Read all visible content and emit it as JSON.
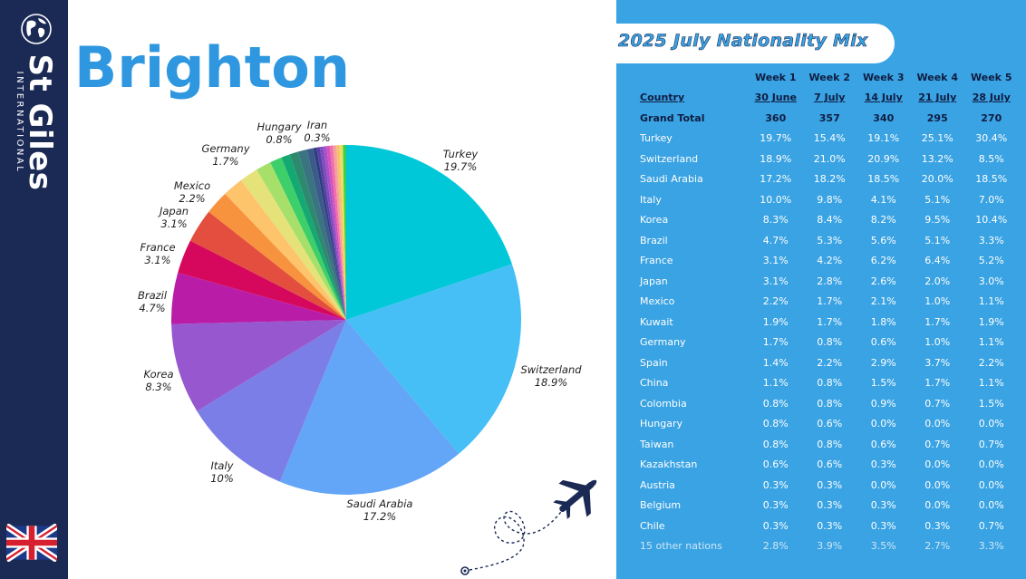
{
  "brand": {
    "name": "St Giles",
    "sub": "INTERNATIONAL"
  },
  "city": "Brighton",
  "table_title": "2025 July Nationality Mix",
  "icons": {
    "logo": "globe-icon",
    "flag": "uk-flag-icon",
    "decor": "airplane-icon"
  },
  "colors": {
    "panel": "#3aa3e3",
    "sidebar": "#1b2a55",
    "city": "#2e97e0"
  },
  "table": {
    "weeks": [
      "Week 1",
      "Week 2",
      "Week 3",
      "Week 4",
      "Week 5"
    ],
    "country_header": "Country",
    "dates": [
      "30 June",
      "7 July",
      "14 July",
      "21 July",
      "28 July"
    ],
    "total_label": "Grand Total",
    "totals": [
      "360",
      "357",
      "340",
      "295",
      "270"
    ],
    "rows": [
      {
        "country": "Turkey",
        "values": [
          "19.7%",
          "15.4%",
          "19.1%",
          "25.1%",
          "30.4%"
        ]
      },
      {
        "country": "Switzerland",
        "values": [
          "18.9%",
          "21.0%",
          "20.9%",
          "13.2%",
          "8.5%"
        ]
      },
      {
        "country": "Saudi Arabia",
        "values": [
          "17.2%",
          "18.2%",
          "18.5%",
          "20.0%",
          "18.5%"
        ]
      },
      {
        "country": "Italy",
        "values": [
          "10.0%",
          "9.8%",
          "4.1%",
          "5.1%",
          "7.0%"
        ]
      },
      {
        "country": "Korea",
        "values": [
          "8.3%",
          "8.4%",
          "8.2%",
          "9.5%",
          "10.4%"
        ]
      },
      {
        "country": "Brazil",
        "values": [
          "4.7%",
          "5.3%",
          "5.6%",
          "5.1%",
          "3.3%"
        ]
      },
      {
        "country": "France",
        "values": [
          "3.1%",
          "4.2%",
          "6.2%",
          "6.4%",
          "5.2%"
        ]
      },
      {
        "country": "Japan",
        "values": [
          "3.1%",
          "2.8%",
          "2.6%",
          "2.0%",
          "3.0%"
        ]
      },
      {
        "country": "Mexico",
        "values": [
          "2.2%",
          "1.7%",
          "2.1%",
          "1.0%",
          "1.1%"
        ]
      },
      {
        "country": "Kuwait",
        "values": [
          "1.9%",
          "1.7%",
          "1.8%",
          "1.7%",
          "1.9%"
        ]
      },
      {
        "country": "Germany",
        "values": [
          "1.7%",
          "0.8%",
          "0.6%",
          "1.0%",
          "1.1%"
        ]
      },
      {
        "country": "Spain",
        "values": [
          "1.4%",
          "2.2%",
          "2.9%",
          "3.7%",
          "2.2%"
        ]
      },
      {
        "country": "China",
        "values": [
          "1.1%",
          "0.8%",
          "1.5%",
          "1.7%",
          "1.1%"
        ]
      },
      {
        "country": "Colombia",
        "values": [
          "0.8%",
          "0.8%",
          "0.9%",
          "0.7%",
          "1.5%"
        ]
      },
      {
        "country": "Hungary",
        "values": [
          "0.8%",
          "0.6%",
          "0.0%",
          "0.0%",
          "0.0%"
        ]
      },
      {
        "country": "Taiwan",
        "values": [
          "0.8%",
          "0.8%",
          "0.6%",
          "0.7%",
          "0.7%"
        ]
      },
      {
        "country": "Kazakhstan",
        "values": [
          "0.6%",
          "0.6%",
          "0.3%",
          "0.0%",
          "0.0%"
        ]
      },
      {
        "country": "Austria",
        "values": [
          "0.3%",
          "0.3%",
          "0.0%",
          "0.0%",
          "0.0%"
        ]
      },
      {
        "country": "Belgium",
        "values": [
          "0.3%",
          "0.3%",
          "0.3%",
          "0.0%",
          "0.0%"
        ]
      },
      {
        "country": "Chile",
        "values": [
          "0.3%",
          "0.3%",
          "0.3%",
          "0.3%",
          "0.7%"
        ]
      }
    ],
    "other": {
      "country": "15 other nations",
      "values": [
        "2.8%",
        "3.9%",
        "3.5%",
        "2.7%",
        "3.3%"
      ]
    }
  },
  "chart_data": {
    "type": "pie",
    "slices": [
      {
        "name": "Turkey",
        "value": 19.7,
        "label": "Turkey",
        "pct": "19.7%",
        "color": "#00c8d8"
      },
      {
        "name": "Switzerland",
        "value": 18.9,
        "label": "Switzerland",
        "pct": "18.9%",
        "color": "#45bff5"
      },
      {
        "name": "Saudi Arabia",
        "value": 17.2,
        "label": "Saudi Arabia",
        "pct": "17.2%",
        "color": "#63a5f6"
      },
      {
        "name": "Italy",
        "value": 10.0,
        "label": "Italy",
        "pct": "10%",
        "color": "#7a7ee6"
      },
      {
        "name": "Korea",
        "value": 8.3,
        "label": "Korea",
        "pct": "8.3%",
        "color": "#9657cf"
      },
      {
        "name": "Brazil",
        "value": 4.7,
        "label": "Brazil",
        "pct": "4.7%",
        "color": "#b91da8"
      },
      {
        "name": "France",
        "value": 3.1,
        "label": "France",
        "pct": "3.1%",
        "color": "#d6085e"
      },
      {
        "name": "Japan",
        "value": 3.1,
        "label": "Japan",
        "pct": "3.1%",
        "color": "#e44e3e"
      },
      {
        "name": "Mexico",
        "value": 2.2,
        "label": "Mexico",
        "pct": "2.2%",
        "color": "#f7923e"
      },
      {
        "name": "Kuwait",
        "value": 1.9,
        "label": "",
        "pct": "",
        "color": "#fdc46c"
      },
      {
        "name": "Germany",
        "value": 1.7,
        "label": "Germany",
        "pct": "1.7%",
        "color": "#e6e27a"
      },
      {
        "name": "Spain",
        "value": 1.4,
        "label": "",
        "pct": "",
        "color": "#a6e06a"
      },
      {
        "name": "China",
        "value": 1.1,
        "label": "",
        "pct": "",
        "color": "#3ccf6a"
      },
      {
        "name": "Colombia",
        "value": 0.8,
        "label": "",
        "pct": "",
        "color": "#14a872"
      },
      {
        "name": "Hungary",
        "value": 0.8,
        "label": "Hungary",
        "pct": "0.8%",
        "color": "#2d8a6e"
      },
      {
        "name": "Taiwan",
        "value": 0.8,
        "label": "",
        "pct": "",
        "color": "#3a7480"
      },
      {
        "name": "Kazakhstan",
        "value": 0.6,
        "label": "",
        "pct": "",
        "color": "#3d5b8a"
      },
      {
        "name": "Austria",
        "value": 0.3,
        "label": "",
        "pct": "",
        "color": "#2b3f80"
      },
      {
        "name": "Belgium",
        "value": 0.3,
        "label": "",
        "pct": "",
        "color": "#5b3fa2"
      },
      {
        "name": "Chile",
        "value": 0.3,
        "label": "",
        "pct": "",
        "color": "#7b4cc0"
      },
      {
        "name": "other-1",
        "value": 0.3,
        "label": "",
        "pct": "",
        "color": "#a850c4"
      },
      {
        "name": "other-2",
        "value": 0.3,
        "label": "",
        "pct": "",
        "color": "#d352c2"
      },
      {
        "name": "other-3",
        "value": 0.3,
        "label": "",
        "pct": "",
        "color": "#f26eaa"
      },
      {
        "name": "other-4",
        "value": 0.3,
        "label": "",
        "pct": "",
        "color": "#f5a0a0"
      },
      {
        "name": "other-5",
        "value": 0.3,
        "label": "",
        "pct": "",
        "color": "#f7c070"
      },
      {
        "name": "other-6",
        "value": 0.3,
        "label": "",
        "pct": "",
        "color": "#e8e060"
      },
      {
        "name": "Iran",
        "value": 0.3,
        "label": "Iran",
        "pct": "0.3%",
        "color": "#3ecf4a"
      }
    ]
  }
}
